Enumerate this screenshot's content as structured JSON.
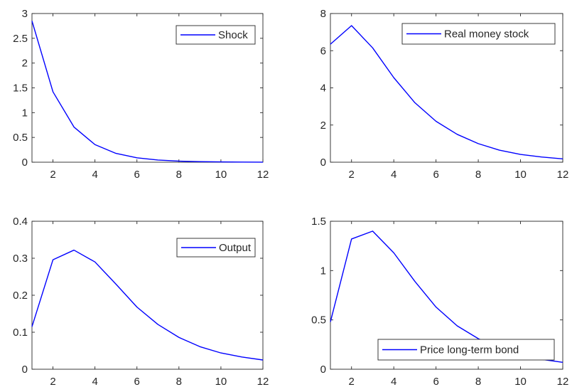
{
  "chart_data": [
    {
      "type": "line",
      "x": [
        1,
        2,
        3,
        4,
        5,
        6,
        7,
        8,
        9,
        10,
        11,
        12
      ],
      "series": [
        {
          "name": "Shock",
          "values": [
            2.85,
            1.42,
            0.71,
            0.355,
            0.178,
            0.089,
            0.044,
            0.022,
            0.011,
            0.006,
            0.003,
            0.0014
          ],
          "color": "#0000ff"
        }
      ],
      "xlim": [
        1,
        12
      ],
      "ylim": [
        0,
        3
      ],
      "xticks": [
        2,
        4,
        6,
        8,
        10,
        12
      ],
      "yticks": [
        0,
        0.5,
        1,
        1.5,
        2,
        2.5,
        3
      ],
      "legend": "top-right",
      "grid": false
    },
    {
      "type": "line",
      "x": [
        1,
        2,
        3,
        4,
        5,
        6,
        7,
        8,
        9,
        10,
        11,
        12
      ],
      "series": [
        {
          "name": "Real money stock",
          "values": [
            6.35,
            7.35,
            6.15,
            4.55,
            3.2,
            2.2,
            1.5,
            1.0,
            0.65,
            0.42,
            0.28,
            0.18
          ],
          "color": "#0000ff"
        }
      ],
      "xlim": [
        1,
        12
      ],
      "ylim": [
        0,
        8
      ],
      "xticks": [
        2,
        4,
        6,
        8,
        10,
        12
      ],
      "yticks": [
        0,
        2,
        4,
        6,
        8
      ],
      "legend": "top-right",
      "grid": false
    },
    {
      "type": "line",
      "x": [
        1,
        2,
        3,
        4,
        5,
        6,
        7,
        8,
        9,
        10,
        11,
        12
      ],
      "series": [
        {
          "name": "Output",
          "values": [
            0.115,
            0.296,
            0.322,
            0.29,
            0.23,
            0.168,
            0.121,
            0.086,
            0.061,
            0.044,
            0.033,
            0.025
          ],
          "color": "#0000ff"
        }
      ],
      "xlim": [
        1,
        12
      ],
      "ylim": [
        0,
        0.4
      ],
      "xticks": [
        2,
        4,
        6,
        8,
        10,
        12
      ],
      "yticks": [
        0,
        0.1,
        0.2,
        0.3,
        0.4
      ],
      "legend": "top-right",
      "grid": false
    },
    {
      "type": "line",
      "x": [
        1,
        2,
        3,
        4,
        5,
        6,
        7,
        8,
        9,
        10,
        11,
        12
      ],
      "series": [
        {
          "name": "Price long-term bond",
          "values": [
            0.48,
            1.32,
            1.4,
            1.18,
            0.89,
            0.63,
            0.44,
            0.31,
            0.21,
            0.14,
            0.1,
            0.07
          ],
          "color": "#0000ff"
        }
      ],
      "xlim": [
        1,
        12
      ],
      "ylim": [
        0,
        1.5
      ],
      "xticks": [
        2,
        4,
        6,
        8,
        10,
        12
      ],
      "yticks": [
        0,
        0.5,
        1,
        1.5
      ],
      "legend": "bottom-right",
      "grid": false
    }
  ]
}
